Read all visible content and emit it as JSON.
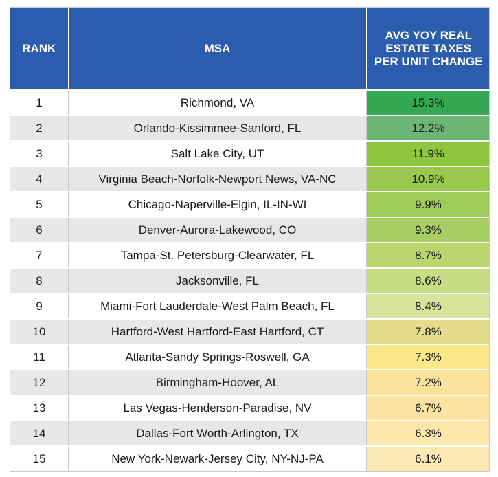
{
  "chart_data": {
    "type": "table",
    "columns": [
      "RANK",
      "MSA",
      "AVG YOY REAL ESTATE TAXES PER UNIT CHANGE"
    ],
    "rows": [
      {
        "rank": "1",
        "msa": "Richmond, VA",
        "value": "15.3%",
        "color": "#34a853"
      },
      {
        "rank": "2",
        "msa": "Orlando-Kissimmee-Sanford, FL",
        "value": "12.2%",
        "color": "#6cb675"
      },
      {
        "rank": "3",
        "msa": "Salt Lake City, UT",
        "value": "11.9%",
        "color": "#8fc640"
      },
      {
        "rank": "4",
        "msa": "Virginia Beach-Norfolk-Newport News, VA-NC",
        "value": "10.9%",
        "color": "#98c94e"
      },
      {
        "rank": "5",
        "msa": "Chicago-Naperville-Elgin, IL-IN-WI",
        "value": "9.9%",
        "color": "#9fcc57"
      },
      {
        "rank": "6",
        "msa": "Denver-Aurora-Lakewood, CO",
        "value": "9.3%",
        "color": "#a8cf64"
      },
      {
        "rank": "7",
        "msa": "Tampa-St. Petersburg-Clearwater, FL",
        "value": "8.7%",
        "color": "#bcd66f"
      },
      {
        "rank": "8",
        "msa": "Jacksonville, FL",
        "value": "8.6%",
        "color": "#c8dc84"
      },
      {
        "rank": "9",
        "msa": "Miami-Fort Lauderdale-West Palm Beach, FL",
        "value": "8.4%",
        "color": "#d6e49d"
      },
      {
        "rank": "10",
        "msa": "Hartford-West Hartford-East Hartford, CT",
        "value": "7.8%",
        "color": "#e3dd8d"
      },
      {
        "rank": "11",
        "msa": "Atlanta-Sandy Springs-Roswell, GA",
        "value": "7.3%",
        "color": "#fde98a"
      },
      {
        "rank": "12",
        "msa": "Birmingham-Hoover, AL",
        "value": "7.2%",
        "color": "#fde29b"
      },
      {
        "rank": "13",
        "msa": "Las Vegas-Henderson-Paradise, NV",
        "value": "6.7%",
        "color": "#fde4a2"
      },
      {
        "rank": "14",
        "msa": "Dallas-Fort Worth-Arlington, TX",
        "value": "6.3%",
        "color": "#fde7ac"
      },
      {
        "rank": "15",
        "msa": "New York-Newark-Jersey City, NY-NJ-PA",
        "value": "6.1%",
        "color": "#fde9b4"
      }
    ]
  }
}
